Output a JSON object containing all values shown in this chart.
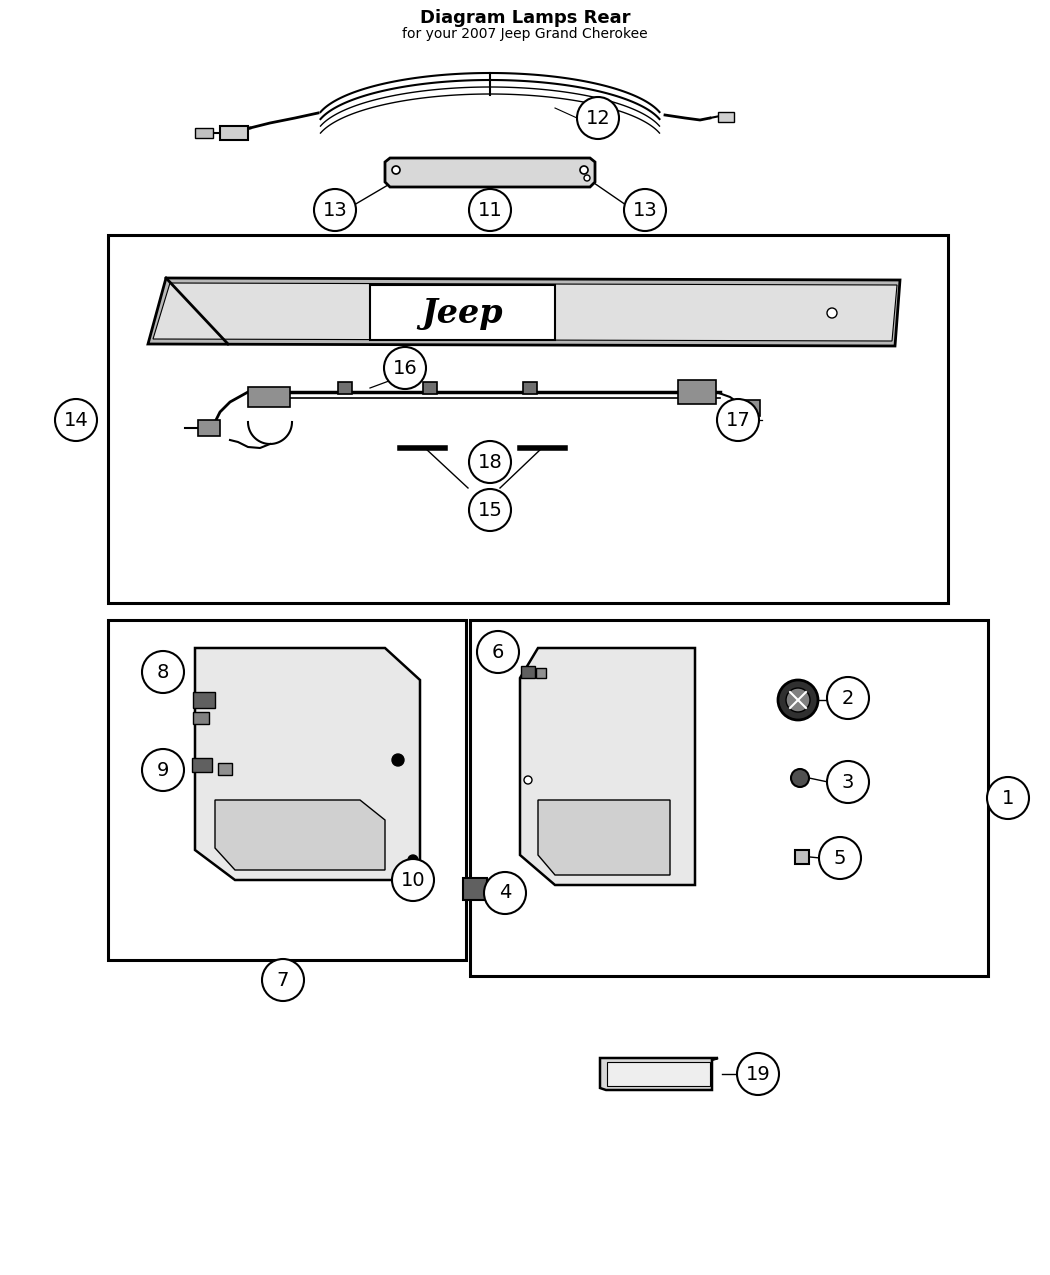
{
  "title": "Diagram Lamps Rear",
  "subtitle": "for your 2007 Jeep Grand Cherokee",
  "background_color": "#ffffff",
  "bubble_color": "#ffffff",
  "bubble_edge_color": "#000000",
  "line_color": "#000000",
  "jeep_text": "Jeep",
  "box_edge_color": "#000000",
  "figw": 10.5,
  "figh": 12.75,
  "dpi": 100
}
